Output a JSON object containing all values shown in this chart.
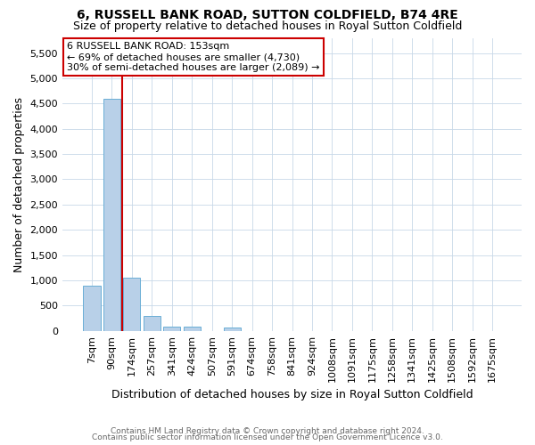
{
  "title": "6, RUSSELL BANK ROAD, SUTTON COLDFIELD, B74 4RE",
  "subtitle": "Size of property relative to detached houses in Royal Sutton Coldfield",
  "xlabel": "Distribution of detached houses by size in Royal Sutton Coldfield",
  "ylabel": "Number of detached properties",
  "footnote1": "Contains HM Land Registry data © Crown copyright and database right 2024.",
  "footnote2": "Contains public sector information licensed under the Open Government Licence v3.0.",
  "categories": [
    "7sqm",
    "90sqm",
    "174sqm",
    "257sqm",
    "341sqm",
    "424sqm",
    "507sqm",
    "591sqm",
    "674sqm",
    "758sqm",
    "841sqm",
    "924sqm",
    "1008sqm",
    "1091sqm",
    "1175sqm",
    "1258sqm",
    "1341sqm",
    "1425sqm",
    "1508sqm",
    "1592sqm",
    "1675sqm"
  ],
  "values": [
    900,
    4600,
    1060,
    300,
    90,
    80,
    0,
    60,
    0,
    0,
    0,
    0,
    0,
    0,
    0,
    0,
    0,
    0,
    0,
    0,
    0
  ],
  "bar_color": "#b8d0e8",
  "bar_edge_color": "#6aaed6",
  "vline_x_pos": 1.5,
  "vline_color": "#cc0000",
  "annotation_text": "6 RUSSELL BANK ROAD: 153sqm\n← 69% of detached houses are smaller (4,730)\n30% of semi-detached houses are larger (2,089) →",
  "annotation_box_color": "#ffffff",
  "annotation_box_edge": "#cc0000",
  "ylim": [
    0,
    5800
  ],
  "yticks": [
    0,
    500,
    1000,
    1500,
    2000,
    2500,
    3000,
    3500,
    4000,
    4500,
    5000,
    5500
  ],
  "title_fontsize": 10,
  "subtitle_fontsize": 9,
  "ylabel_fontsize": 9,
  "xlabel_fontsize": 9,
  "tick_fontsize": 8,
  "annot_fontsize": 8,
  "footnote_fontsize": 6.5,
  "background_color": "#ffffff",
  "grid_color": "#c8d8e8"
}
